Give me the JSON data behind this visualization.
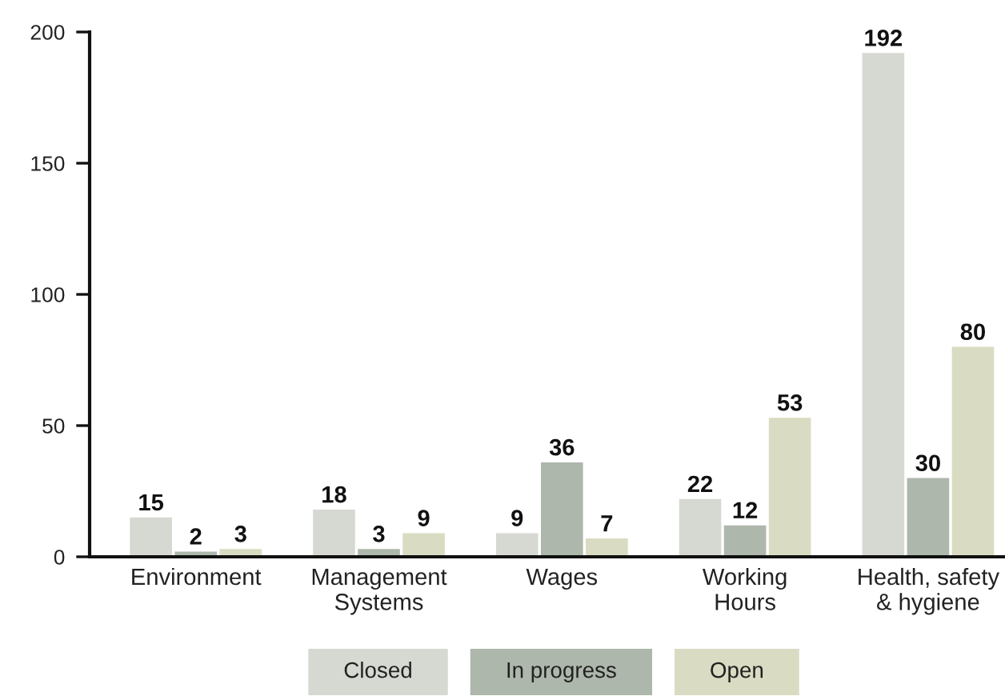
{
  "chart_data": {
    "type": "bar",
    "categories": [
      "Environment",
      "Management\nSystems",
      "Wages",
      "Working\nHours",
      "Health, safety\n& hygiene"
    ],
    "series": [
      {
        "name": "Closed",
        "color": "#d6d9d2",
        "values": [
          15,
          18,
          9,
          22,
          192
        ]
      },
      {
        "name": "In progress",
        "color": "#aeb7ab",
        "values": [
          2,
          3,
          36,
          12,
          30
        ]
      },
      {
        "name": "Open",
        "color": "#d9dcc2",
        "values": [
          3,
          9,
          7,
          53,
          80
        ]
      }
    ],
    "ylim": [
      0,
      200
    ],
    "yticks": [
      0,
      50,
      100,
      150,
      200
    ],
    "data_labels": true,
    "grid": false,
    "legend": "bottom"
  }
}
